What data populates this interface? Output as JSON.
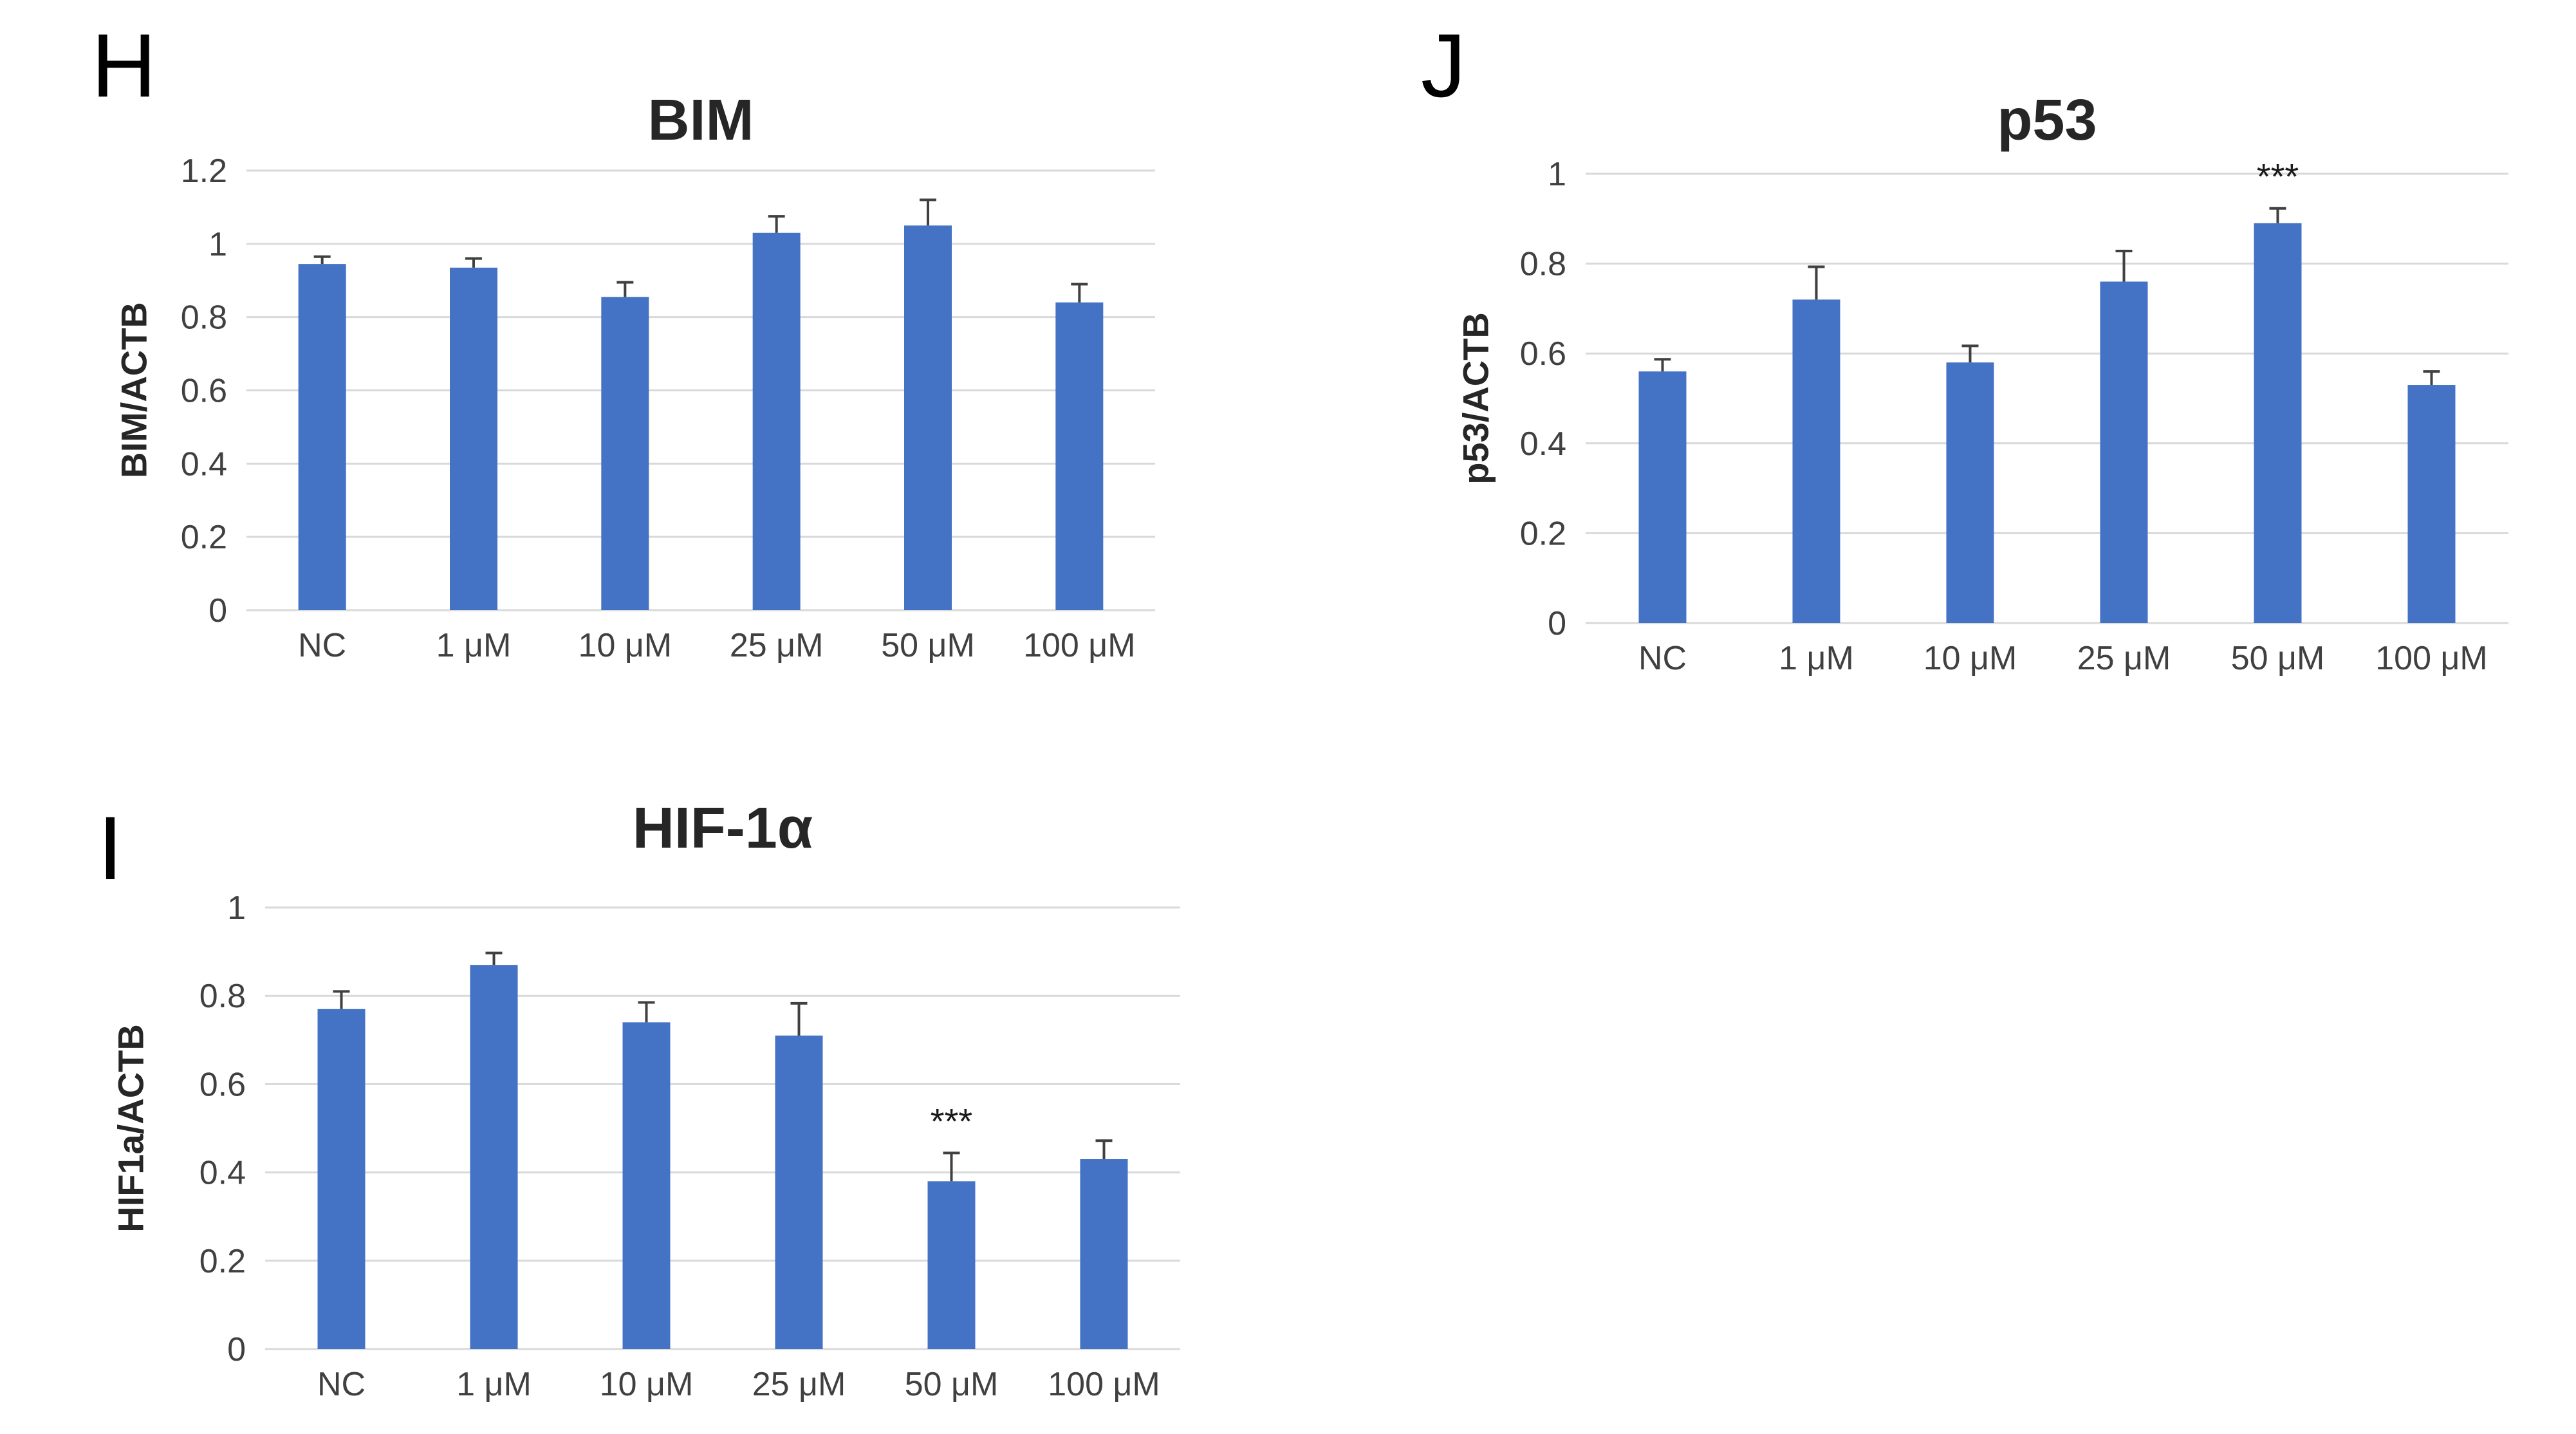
{
  "figure": {
    "background": "#ffffff"
  },
  "colors": {
    "bar": "#4472c4",
    "error_bar": "#404040",
    "gridline": "#d9d9d9",
    "text": "#262626",
    "tick_text": "#404040"
  },
  "chart_data": [
    {
      "type": "bar",
      "panel_label": "H",
      "title": "BIM",
      "ylabel": "BIM/ACTB",
      "xlabel": "",
      "categories": [
        "NC",
        "1 μM",
        "10 μM",
        "25 μM",
        "50 μM",
        "100 μM"
      ],
      "values": [
        0.945,
        0.935,
        0.855,
        1.03,
        1.05,
        0.84
      ],
      "errors": [
        0.02,
        0.025,
        0.04,
        0.045,
        0.07,
        0.05
      ],
      "ylim": [
        0,
        1.2
      ],
      "yticks": [
        0,
        0.2,
        0.4,
        0.6,
        0.8,
        1,
        1.2
      ],
      "ytick_labels": [
        "0",
        "0.2",
        "0.4",
        "0.6",
        "0.8",
        "1",
        "1.2"
      ],
      "grid": "horizontal",
      "legend": "none",
      "annotations": []
    },
    {
      "type": "bar",
      "panel_label": "J",
      "title": "p53",
      "ylabel": "p53/ACTB",
      "xlabel": "",
      "categories": [
        "NC",
        "1 μM",
        "10 μM",
        "25 μM",
        "50 μM",
        "100 μM"
      ],
      "values": [
        0.56,
        0.72,
        0.58,
        0.76,
        0.89,
        0.53
      ],
      "errors": [
        0.027,
        0.073,
        0.037,
        0.068,
        0.033,
        0.03
      ],
      "ylim": [
        0,
        1.0
      ],
      "yticks": [
        0,
        0.2,
        0.4,
        0.6,
        0.8,
        1
      ],
      "ytick_labels": [
        "0",
        "0.2",
        "0.4",
        "0.6",
        "0.8",
        "1"
      ],
      "grid": "horizontal",
      "legend": "none",
      "annotations": [
        {
          "category_index": 4,
          "text": "***"
        }
      ]
    },
    {
      "type": "bar",
      "panel_label": "I",
      "title": "HIF-1α",
      "ylabel": "HIF1a/ACTB",
      "xlabel": "",
      "categories": [
        "NC",
        "1 μM",
        "10 μM",
        "25 μM",
        "50 μM",
        "100 μM"
      ],
      "values": [
        0.77,
        0.87,
        0.74,
        0.71,
        0.38,
        0.43
      ],
      "errors": [
        0.04,
        0.027,
        0.045,
        0.073,
        0.064,
        0.042
      ],
      "ylim": [
        0,
        1.0
      ],
      "yticks": [
        0,
        0.2,
        0.4,
        0.6,
        0.8,
        1
      ],
      "ytick_labels": [
        "0",
        "0.2",
        "0.4",
        "0.6",
        "0.8",
        "1"
      ],
      "grid": "horizontal",
      "legend": "none",
      "annotations": [
        {
          "category_index": 4,
          "text": "***"
        }
      ]
    }
  ]
}
